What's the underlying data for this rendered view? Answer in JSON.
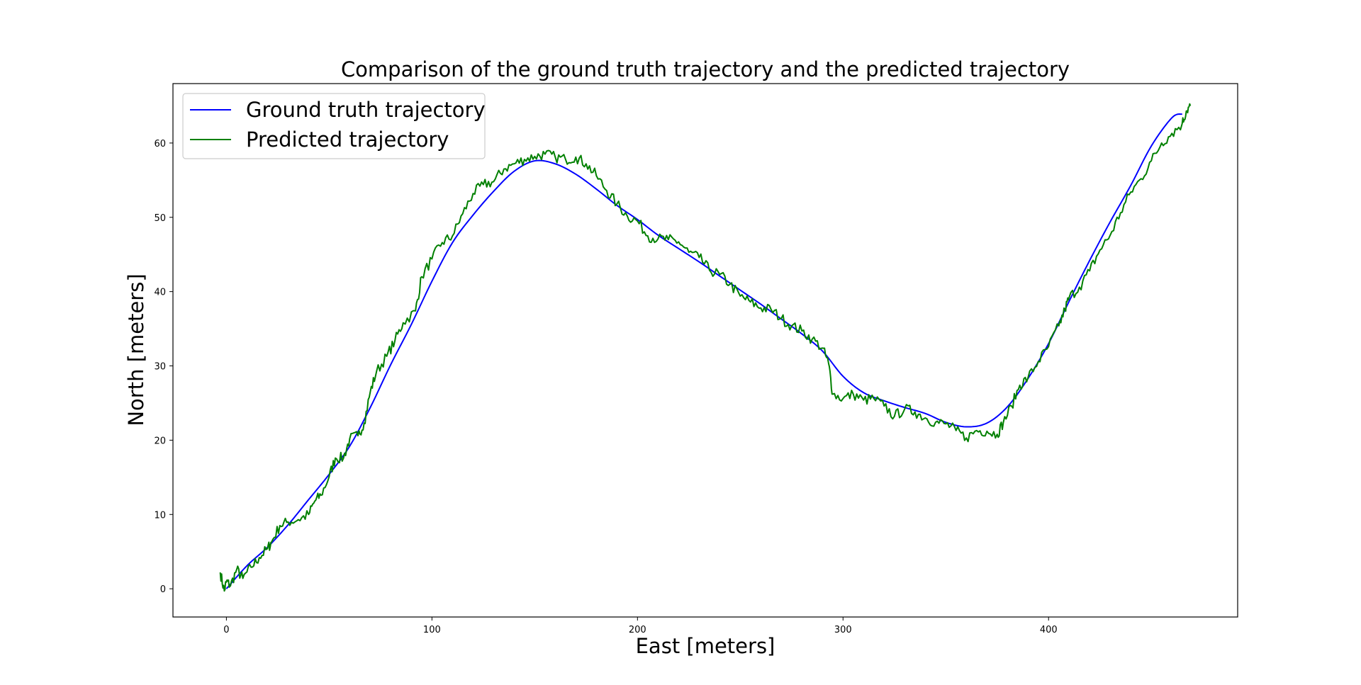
{
  "chart_data": {
    "type": "line",
    "title": "Comparison of the ground truth trajectory and the predicted trajectory",
    "xlabel": "East [meters]",
    "ylabel": "North [meters]",
    "xlim": [
      -26,
      492
    ],
    "ylim": [
      -3.8,
      68
    ],
    "xticks": [
      "0",
      "100",
      "200",
      "300",
      "400"
    ],
    "yticks": [
      "0",
      "10",
      "20",
      "30",
      "40",
      "50",
      "60"
    ],
    "legend_position": "top-left",
    "grid": false,
    "series": [
      {
        "name": "Ground truth trajectory",
        "color": "#0000ff",
        "points": [
          [
            0,
            0
          ],
          [
            10,
            3.1
          ],
          [
            20,
            5.6
          ],
          [
            30,
            8.6
          ],
          [
            40,
            12
          ],
          [
            50,
            15.4
          ],
          [
            60,
            19.2
          ],
          [
            70,
            24.4
          ],
          [
            80,
            30.2
          ],
          [
            90,
            35.6
          ],
          [
            100,
            41.4
          ],
          [
            110,
            46.6
          ],
          [
            120,
            50.3
          ],
          [
            130,
            53.5
          ],
          [
            140,
            56.2
          ],
          [
            150,
            57.6
          ],
          [
            160,
            57.2
          ],
          [
            170,
            55.8
          ],
          [
            180,
            53.8
          ],
          [
            190,
            51.6
          ],
          [
            200,
            49.7
          ],
          [
            210,
            47.6
          ],
          [
            220,
            45.8
          ],
          [
            230,
            44
          ],
          [
            240,
            42.1
          ],
          [
            250,
            40.2
          ],
          [
            260,
            38.3
          ],
          [
            270,
            36.3
          ],
          [
            280,
            34.3
          ],
          [
            290,
            32
          ],
          [
            300,
            28.6
          ],
          [
            310,
            26.4
          ],
          [
            320,
            25.3
          ],
          [
            330,
            24.4
          ],
          [
            340,
            23.6
          ],
          [
            350,
            22.4
          ],
          [
            360,
            21.8
          ],
          [
            370,
            22.3
          ],
          [
            380,
            24.5
          ],
          [
            390,
            28.3
          ],
          [
            400,
            33
          ],
          [
            410,
            38.7
          ],
          [
            420,
            44.2
          ],
          [
            430,
            49.4
          ],
          [
            440,
            54.3
          ],
          [
            450,
            59.6
          ],
          [
            460,
            63.4
          ],
          [
            465,
            63.9
          ]
        ]
      },
      {
        "name": "Predicted trajectory",
        "color": "#008000",
        "noise": 0.75,
        "points": [
          [
            -3,
            2.2
          ],
          [
            -1,
            -0.3
          ],
          [
            0,
            1
          ],
          [
            2,
            0.4
          ],
          [
            5,
            2.6
          ],
          [
            8,
            1.4
          ],
          [
            12,
            2.9
          ],
          [
            16,
            4.2
          ],
          [
            20,
            5.4
          ],
          [
            22,
            6.3
          ],
          [
            26,
            8.5
          ],
          [
            30,
            9
          ],
          [
            35,
            9.3
          ],
          [
            40,
            10
          ],
          [
            43,
            11.8
          ],
          [
            46,
            12.6
          ],
          [
            50,
            15.1
          ],
          [
            53,
            17.6
          ],
          [
            57,
            17.6
          ],
          [
            60,
            20.2
          ],
          [
            64,
            20.6
          ],
          [
            67,
            22.3
          ],
          [
            70,
            26.5
          ],
          [
            73,
            29.2
          ],
          [
            78,
            31.3
          ],
          [
            82,
            33.4
          ],
          [
            86,
            35.8
          ],
          [
            92,
            37.4
          ],
          [
            95,
            42
          ],
          [
            100,
            44.4
          ],
          [
            105,
            46.6
          ],
          [
            110,
            47.5
          ],
          [
            115,
            50.5
          ],
          [
            120,
            53.2
          ],
          [
            125,
            54.4
          ],
          [
            130,
            54.8
          ],
          [
            135,
            56.5
          ],
          [
            140,
            57.2
          ],
          [
            145,
            57.8
          ],
          [
            150,
            58.2
          ],
          [
            155,
            58.5
          ],
          [
            160,
            58.1
          ],
          [
            165,
            57.8
          ],
          [
            170,
            58.1
          ],
          [
            175,
            57.2
          ],
          [
            180,
            55.6
          ],
          [
            185,
            53.6
          ],
          [
            190,
            51.8
          ],
          [
            195,
            50.2
          ],
          [
            200,
            49.5
          ],
          [
            205,
            47.5
          ],
          [
            210,
            47.1
          ],
          [
            215,
            47
          ],
          [
            220,
            46.7
          ],
          [
            225,
            45.3
          ],
          [
            230,
            44.6
          ],
          [
            235,
            42.9
          ],
          [
            240,
            42.3
          ],
          [
            245,
            41
          ],
          [
            250,
            39.4
          ],
          [
            255,
            38.6
          ],
          [
            260,
            37.8
          ],
          [
            265,
            37.6
          ],
          [
            270,
            36.4
          ],
          [
            275,
            35.4
          ],
          [
            280,
            34.7
          ],
          [
            285,
            33.6
          ],
          [
            290,
            32.4
          ],
          [
            293,
            30.3
          ],
          [
            295,
            26.2
          ],
          [
            300,
            25.6
          ],
          [
            305,
            26.2
          ],
          [
            310,
            25.4
          ],
          [
            315,
            25.6
          ],
          [
            320,
            24.6
          ],
          [
            325,
            23.2
          ],
          [
            330,
            24.2
          ],
          [
            335,
            23.8
          ],
          [
            340,
            23
          ],
          [
            345,
            22.4
          ],
          [
            350,
            22.2
          ],
          [
            355,
            21.3
          ],
          [
            360,
            20.3
          ],
          [
            365,
            21.3
          ],
          [
            370,
            21.2
          ],
          [
            375,
            20.8
          ],
          [
            378,
            22.4
          ],
          [
            382,
            24.6
          ],
          [
            386,
            27.4
          ],
          [
            390,
            28.4
          ],
          [
            395,
            30.6
          ],
          [
            400,
            32.6
          ],
          [
            405,
            35.4
          ],
          [
            408,
            37.6
          ],
          [
            410,
            39.2
          ],
          [
            415,
            40.6
          ],
          [
            420,
            42.8
          ],
          [
            425,
            45.6
          ],
          [
            430,
            47.6
          ],
          [
            435,
            50.6
          ],
          [
            440,
            53.4
          ],
          [
            445,
            55.2
          ],
          [
            450,
            57.6
          ],
          [
            455,
            60
          ],
          [
            460,
            61.3
          ],
          [
            465,
            62.6
          ],
          [
            467,
            64.3
          ],
          [
            469,
            65
          ]
        ]
      }
    ]
  }
}
